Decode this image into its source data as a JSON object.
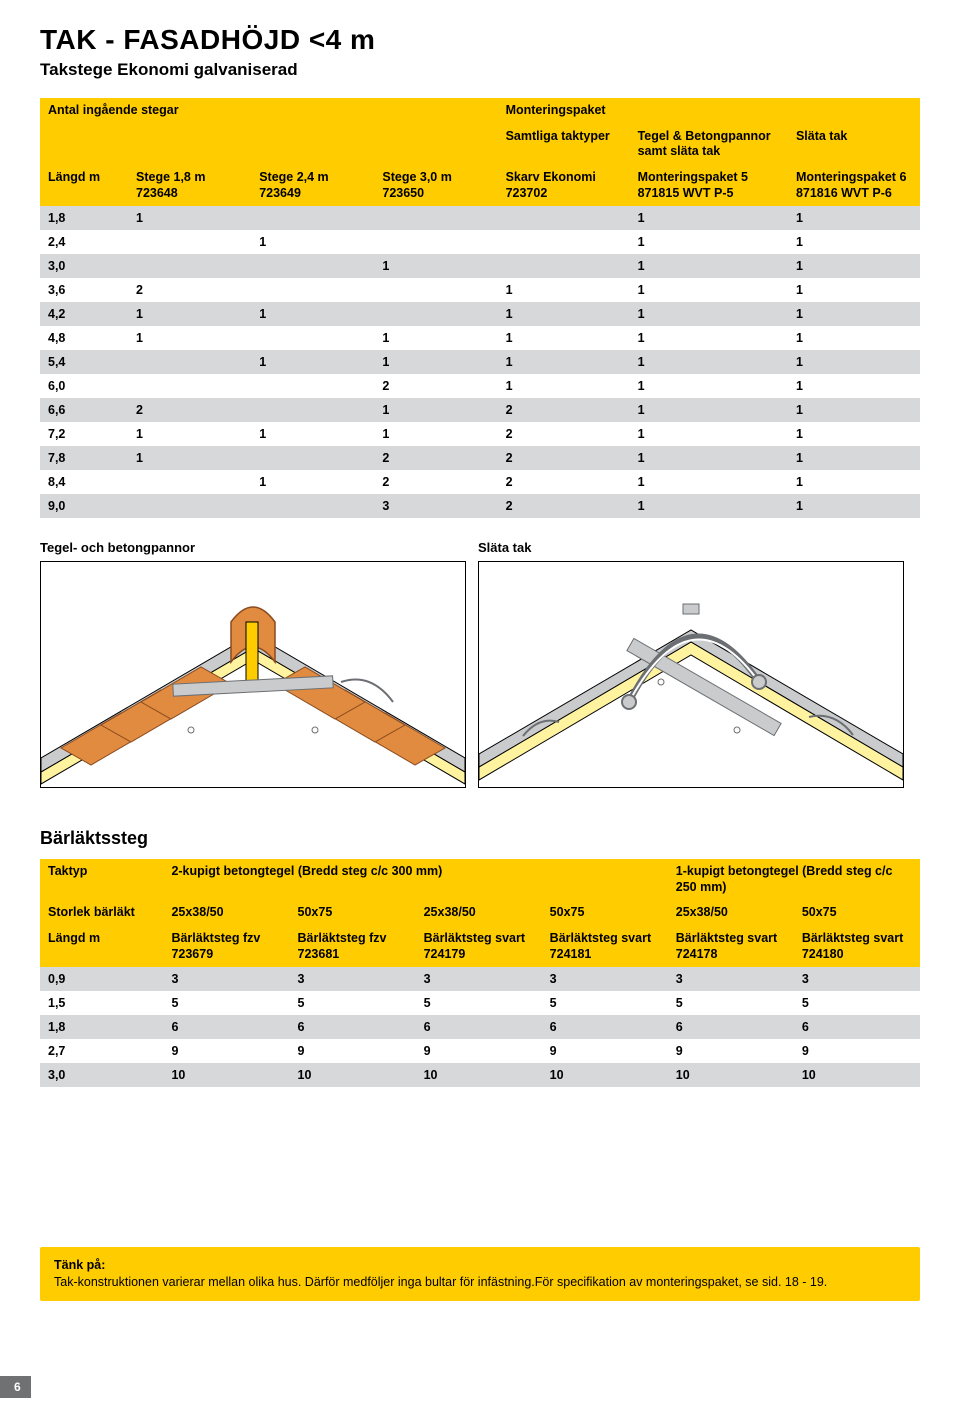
{
  "title": "TAK - FASADHÖJD <4 m",
  "subtitle": "Takstege Ekonomi galvaniserad",
  "table1": {
    "header_top": [
      "Antal ingående stegar",
      "",
      "",
      "",
      "Monteringspaket",
      "",
      ""
    ],
    "header_mid": [
      "",
      "",
      "",
      "",
      "Samtliga taktyper",
      "Tegel & Betongpannor samt släta tak",
      "Släta tak"
    ],
    "header_sub": [
      "Längd m",
      "Stege 1,8 m 723648",
      "Stege 2,4 m 723649",
      "Stege 3,0 m 723650",
      "Skarv Ekonomi 723702",
      "Monteringspaket 5 871815 WVT P-5",
      "Monteringspaket 6 871816 WVT P-6"
    ],
    "rows": [
      [
        "1,8",
        "1",
        "",
        "",
        "",
        "1",
        "1"
      ],
      [
        "2,4",
        "",
        "1",
        "",
        "",
        "1",
        "1"
      ],
      [
        "3,0",
        "",
        "",
        "1",
        "",
        "1",
        "1"
      ],
      [
        "3,6",
        "2",
        "",
        "",
        "1",
        "1",
        "1"
      ],
      [
        "4,2",
        "1",
        "1",
        "",
        "1",
        "1",
        "1"
      ],
      [
        "4,8",
        "1",
        "",
        "1",
        "1",
        "1",
        "1"
      ],
      [
        "5,4",
        "",
        "1",
        "1",
        "1",
        "1",
        "1"
      ],
      [
        "6,0",
        "",
        "",
        "2",
        "1",
        "1",
        "1"
      ],
      [
        "6,6",
        "2",
        "",
        "1",
        "2",
        "1",
        "1"
      ],
      [
        "7,2",
        "1",
        "1",
        "1",
        "2",
        "1",
        "1"
      ],
      [
        "7,8",
        "1",
        "",
        "2",
        "2",
        "1",
        "1"
      ],
      [
        "8,4",
        "",
        "1",
        "2",
        "2",
        "1",
        "1"
      ],
      [
        "9,0",
        "",
        "",
        "3",
        "2",
        "1",
        "1"
      ]
    ],
    "row_shades": [
      "grey",
      "white",
      "grey",
      "white",
      "grey",
      "white",
      "grey",
      "white",
      "grey",
      "white",
      "grey",
      "white",
      "grey"
    ]
  },
  "diagram_labels": {
    "left": "Tegel- och betongpannor",
    "right": "Släta tak"
  },
  "section2_title": "Bärläktssteg",
  "table2": {
    "header_top": [
      "Taktyp",
      "2-kupigt betongtegel (Bredd steg c/c 300 mm)",
      "",
      "",
      "",
      "1-kupigt betongtegel (Bredd steg c/c 250 mm)",
      ""
    ],
    "header_mid": [
      "Storlek bärläkt",
      "25x38/50",
      "50x75",
      "25x38/50",
      "50x75",
      "25x38/50",
      "50x75"
    ],
    "header_sub": [
      "Längd m",
      "Bärläktsteg fzv 723679",
      "Bärläktsteg fzv 723681",
      "Bärläktsteg svart 724179",
      "Bärläktsteg svart 724181",
      "Bärläktsteg svart 724178",
      "Bärläktsteg svart 724180"
    ],
    "rows": [
      [
        "0,9",
        "3",
        "3",
        "3",
        "3",
        "3",
        "3"
      ],
      [
        "1,5",
        "5",
        "5",
        "5",
        "5",
        "5",
        "5"
      ],
      [
        "1,8",
        "6",
        "6",
        "6",
        "6",
        "6",
        "6"
      ],
      [
        "2,7",
        "9",
        "9",
        "9",
        "9",
        "9",
        "9"
      ],
      [
        "3,0",
        "10",
        "10",
        "10",
        "10",
        "10",
        "10"
      ]
    ],
    "row_shades": [
      "grey",
      "white",
      "grey",
      "white",
      "grey"
    ]
  },
  "note": {
    "title": "Tänk på:",
    "body": "Tak-konstruktionen varierar mellan olika hus. Därför medföljer inga bultar för infästning.För specifikation av monteringspaket, se sid. 18 - 19."
  },
  "page_number": "6",
  "colors": {
    "accent": "#ffcc00",
    "grey_row": "#d7d8d9",
    "roof_tile": "#e08b3f",
    "roof_base": "#fff3a0",
    "metal_fill": "#c9cbcd",
    "metal_stroke": "#6b6f73",
    "page_tab": "#6f7173"
  }
}
